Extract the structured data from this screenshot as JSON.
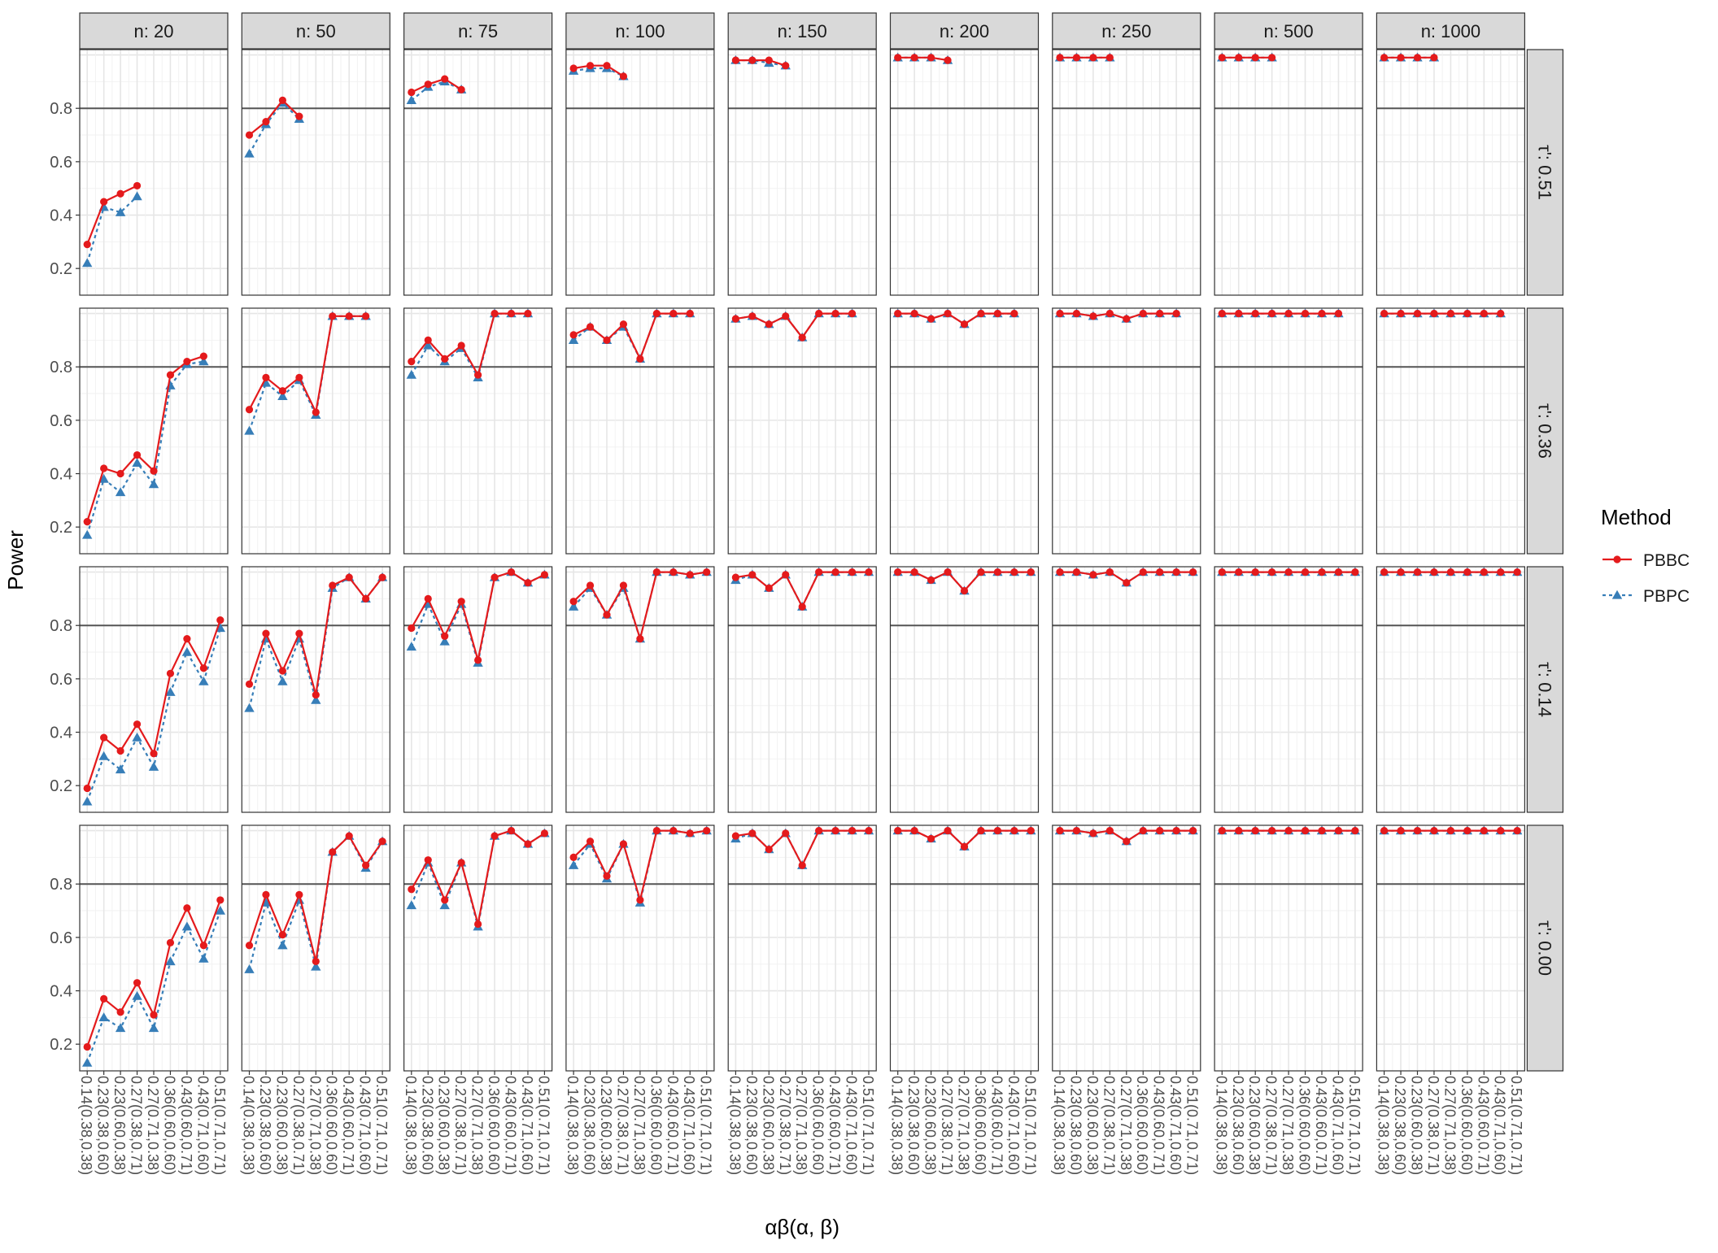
{
  "chart_data": {
    "type": "line",
    "facet_columns": [
      "n: 20",
      "n: 50",
      "n: 75",
      "n: 100",
      "n: 150",
      "n: 200",
      "n: 250",
      "n: 500",
      "n: 1000"
    ],
    "facet_rows": [
      "τ': 0.51",
      "τ': 0.36",
      "τ': 0.14",
      "τ': 0.00"
    ],
    "categories": [
      "0.14(0.38,0.38)",
      "0.23(0.38,0.60)",
      "0.23(0.60,0.38)",
      "0.27(0.38,0.71)",
      "0.27(0.71,0.38)",
      "0.36(0.60,0.60)",
      "0.43(0.60,0.71)",
      "0.43(0.71,0.60)",
      "0.51(0.71,0.71)"
    ],
    "xlabel": "αβ(α, β)",
    "ylabel": "Power",
    "ylim": [
      0.1,
      1.02
    ],
    "yticks": [
      0.2,
      0.4,
      0.6,
      0.8
    ],
    "yticklabels": [
      "0.2",
      "0.4",
      "0.6",
      "0.8"
    ],
    "reference_line": 0.8,
    "grid": true,
    "legend": {
      "title": "Method",
      "position": "right",
      "entries": [
        "PBBC",
        "PBPC"
      ]
    },
    "series_styles": [
      {
        "name": "PBBC",
        "color": "#e41a1c",
        "marker": "circle",
        "line": "solid"
      },
      {
        "name": "PBPC",
        "color": "#377eb8",
        "marker": "triangle",
        "line": "dashed"
      }
    ],
    "panels": [
      {
        "row": 0,
        "col": 0,
        "PBBC": [
          0.29,
          0.45,
          0.48,
          0.51
        ],
        "PBPC": [
          0.22,
          0.43,
          0.41,
          0.47
        ]
      },
      {
        "row": 0,
        "col": 1,
        "PBBC": [
          0.7,
          0.75,
          0.83,
          0.77
        ],
        "PBPC": [
          0.63,
          0.74,
          0.82,
          0.76
        ]
      },
      {
        "row": 0,
        "col": 2,
        "PBBC": [
          0.86,
          0.89,
          0.91,
          0.87
        ],
        "PBPC": [
          0.83,
          0.88,
          0.9,
          0.87
        ]
      },
      {
        "row": 0,
        "col": 3,
        "PBBC": [
          0.95,
          0.96,
          0.96,
          0.92
        ],
        "PBPC": [
          0.94,
          0.95,
          0.95,
          0.92
        ]
      },
      {
        "row": 0,
        "col": 4,
        "PBBC": [
          0.98,
          0.98,
          0.98,
          0.96
        ],
        "PBPC": [
          0.98,
          0.98,
          0.97,
          0.96
        ]
      },
      {
        "row": 0,
        "col": 5,
        "PBBC": [
          0.99,
          0.99,
          0.99,
          0.98
        ],
        "PBPC": [
          0.99,
          0.99,
          0.99,
          0.98
        ]
      },
      {
        "row": 0,
        "col": 6,
        "PBBC": [
          0.99,
          0.99,
          0.99,
          0.99
        ],
        "PBPC": [
          0.99,
          0.99,
          0.99,
          0.99
        ]
      },
      {
        "row": 0,
        "col": 7,
        "PBBC": [
          0.99,
          0.99,
          0.99,
          0.99
        ],
        "PBPC": [
          0.99,
          0.99,
          0.99,
          0.99
        ]
      },
      {
        "row": 0,
        "col": 8,
        "PBBC": [
          0.99,
          0.99,
          0.99,
          0.99
        ],
        "PBPC": [
          0.99,
          0.99,
          0.99,
          0.99
        ]
      },
      {
        "row": 1,
        "col": 0,
        "PBBC": [
          0.22,
          0.42,
          0.4,
          0.47,
          0.41,
          0.77,
          0.82,
          0.84
        ],
        "PBPC": [
          0.17,
          0.38,
          0.33,
          0.44,
          0.36,
          0.73,
          0.81,
          0.82
        ]
      },
      {
        "row": 1,
        "col": 1,
        "PBBC": [
          0.64,
          0.76,
          0.71,
          0.76,
          0.63,
          0.99,
          0.99,
          0.99
        ],
        "PBPC": [
          0.56,
          0.74,
          0.69,
          0.75,
          0.62,
          0.99,
          0.99,
          0.99
        ]
      },
      {
        "row": 1,
        "col": 2,
        "PBBC": [
          0.82,
          0.9,
          0.83,
          0.88,
          0.77,
          1.0,
          1.0,
          1.0
        ],
        "PBPC": [
          0.77,
          0.88,
          0.82,
          0.87,
          0.76,
          1.0,
          1.0,
          1.0
        ]
      },
      {
        "row": 1,
        "col": 3,
        "PBBC": [
          0.92,
          0.95,
          0.9,
          0.96,
          0.83,
          1.0,
          1.0,
          1.0
        ],
        "PBPC": [
          0.9,
          0.95,
          0.9,
          0.95,
          0.83,
          1.0,
          1.0,
          1.0
        ]
      },
      {
        "row": 1,
        "col": 4,
        "PBBC": [
          0.98,
          0.99,
          0.96,
          0.99,
          0.91,
          1.0,
          1.0,
          1.0
        ],
        "PBPC": [
          0.98,
          0.99,
          0.96,
          0.99,
          0.91,
          1.0,
          1.0,
          1.0
        ]
      },
      {
        "row": 1,
        "col": 5,
        "PBBC": [
          1.0,
          1.0,
          0.98,
          1.0,
          0.96,
          1.0,
          1.0,
          1.0
        ],
        "PBPC": [
          1.0,
          1.0,
          0.98,
          1.0,
          0.96,
          1.0,
          1.0,
          1.0
        ]
      },
      {
        "row": 1,
        "col": 6,
        "PBBC": [
          1.0,
          1.0,
          0.99,
          1.0,
          0.98,
          1.0,
          1.0,
          1.0
        ],
        "PBPC": [
          1.0,
          1.0,
          0.99,
          1.0,
          0.98,
          1.0,
          1.0,
          1.0
        ]
      },
      {
        "row": 1,
        "col": 7,
        "PBBC": [
          1.0,
          1.0,
          1.0,
          1.0,
          1.0,
          1.0,
          1.0,
          1.0
        ],
        "PBPC": [
          1.0,
          1.0,
          1.0,
          1.0,
          1.0,
          1.0,
          1.0,
          1.0
        ]
      },
      {
        "row": 1,
        "col": 8,
        "PBBC": [
          1.0,
          1.0,
          1.0,
          1.0,
          1.0,
          1.0,
          1.0,
          1.0
        ],
        "PBPC": [
          1.0,
          1.0,
          1.0,
          1.0,
          1.0,
          1.0,
          1.0,
          1.0
        ]
      },
      {
        "row": 2,
        "col": 0,
        "PBBC": [
          0.19,
          0.38,
          0.33,
          0.43,
          0.32,
          0.62,
          0.75,
          0.64,
          0.82
        ],
        "PBPC": [
          0.14,
          0.31,
          0.26,
          0.38,
          0.27,
          0.55,
          0.7,
          0.59,
          0.79
        ]
      },
      {
        "row": 2,
        "col": 1,
        "PBBC": [
          0.58,
          0.77,
          0.63,
          0.77,
          0.54,
          0.95,
          0.98,
          0.9,
          0.98
        ],
        "PBPC": [
          0.49,
          0.75,
          0.59,
          0.75,
          0.52,
          0.94,
          0.98,
          0.9,
          0.98
        ]
      },
      {
        "row": 2,
        "col": 2,
        "PBBC": [
          0.79,
          0.9,
          0.76,
          0.89,
          0.67,
          0.98,
          1.0,
          0.96,
          0.99
        ],
        "PBPC": [
          0.72,
          0.88,
          0.74,
          0.88,
          0.66,
          0.98,
          1.0,
          0.96,
          0.99
        ]
      },
      {
        "row": 2,
        "col": 3,
        "PBBC": [
          0.89,
          0.95,
          0.84,
          0.95,
          0.75,
          1.0,
          1.0,
          0.99,
          1.0
        ],
        "PBPC": [
          0.87,
          0.94,
          0.84,
          0.94,
          0.75,
          1.0,
          1.0,
          0.99,
          1.0
        ]
      },
      {
        "row": 2,
        "col": 4,
        "PBBC": [
          0.98,
          0.99,
          0.94,
          0.99,
          0.87,
          1.0,
          1.0,
          1.0,
          1.0
        ],
        "PBPC": [
          0.97,
          0.99,
          0.94,
          0.99,
          0.87,
          1.0,
          1.0,
          1.0,
          1.0
        ]
      },
      {
        "row": 2,
        "col": 5,
        "PBBC": [
          1.0,
          1.0,
          0.97,
          1.0,
          0.93,
          1.0,
          1.0,
          1.0,
          1.0
        ],
        "PBPC": [
          1.0,
          1.0,
          0.97,
          1.0,
          0.93,
          1.0,
          1.0,
          1.0,
          1.0
        ]
      },
      {
        "row": 2,
        "col": 6,
        "PBBC": [
          1.0,
          1.0,
          0.99,
          1.0,
          0.96,
          1.0,
          1.0,
          1.0,
          1.0
        ],
        "PBPC": [
          1.0,
          1.0,
          0.99,
          1.0,
          0.96,
          1.0,
          1.0,
          1.0,
          1.0
        ]
      },
      {
        "row": 2,
        "col": 7,
        "PBBC": [
          1.0,
          1.0,
          1.0,
          1.0,
          1.0,
          1.0,
          1.0,
          1.0,
          1.0
        ],
        "PBPC": [
          1.0,
          1.0,
          1.0,
          1.0,
          1.0,
          1.0,
          1.0,
          1.0,
          1.0
        ]
      },
      {
        "row": 2,
        "col": 8,
        "PBBC": [
          1.0,
          1.0,
          1.0,
          1.0,
          1.0,
          1.0,
          1.0,
          1.0,
          1.0
        ],
        "PBPC": [
          1.0,
          1.0,
          1.0,
          1.0,
          1.0,
          1.0,
          1.0,
          1.0,
          1.0
        ]
      },
      {
        "row": 3,
        "col": 0,
        "PBBC": [
          0.19,
          0.37,
          0.32,
          0.43,
          0.31,
          0.58,
          0.71,
          0.57,
          0.74
        ],
        "PBPC": [
          0.13,
          0.3,
          0.26,
          0.38,
          0.26,
          0.51,
          0.64,
          0.52,
          0.7
        ]
      },
      {
        "row": 3,
        "col": 1,
        "PBBC": [
          0.57,
          0.76,
          0.61,
          0.76,
          0.51,
          0.92,
          0.98,
          0.87,
          0.96
        ],
        "PBPC": [
          0.48,
          0.73,
          0.57,
          0.74,
          0.49,
          0.92,
          0.98,
          0.86,
          0.96
        ]
      },
      {
        "row": 3,
        "col": 2,
        "PBBC": [
          0.78,
          0.89,
          0.74,
          0.88,
          0.65,
          0.98,
          1.0,
          0.95,
          0.99
        ],
        "PBPC": [
          0.72,
          0.88,
          0.72,
          0.88,
          0.64,
          0.98,
          1.0,
          0.95,
          0.99
        ]
      },
      {
        "row": 3,
        "col": 3,
        "PBBC": [
          0.9,
          0.96,
          0.83,
          0.95,
          0.74,
          1.0,
          1.0,
          0.99,
          1.0
        ],
        "PBPC": [
          0.87,
          0.95,
          0.82,
          0.95,
          0.73,
          1.0,
          1.0,
          0.99,
          1.0
        ]
      },
      {
        "row": 3,
        "col": 4,
        "PBBC": [
          0.98,
          0.99,
          0.93,
          0.99,
          0.87,
          1.0,
          1.0,
          1.0,
          1.0
        ],
        "PBPC": [
          0.97,
          0.99,
          0.93,
          0.99,
          0.87,
          1.0,
          1.0,
          1.0,
          1.0
        ]
      },
      {
        "row": 3,
        "col": 5,
        "PBBC": [
          1.0,
          1.0,
          0.97,
          1.0,
          0.94,
          1.0,
          1.0,
          1.0,
          1.0
        ],
        "PBPC": [
          1.0,
          1.0,
          0.97,
          1.0,
          0.94,
          1.0,
          1.0,
          1.0,
          1.0
        ]
      },
      {
        "row": 3,
        "col": 6,
        "PBBC": [
          1.0,
          1.0,
          0.99,
          1.0,
          0.96,
          1.0,
          1.0,
          1.0,
          1.0
        ],
        "PBPC": [
          1.0,
          1.0,
          0.99,
          1.0,
          0.96,
          1.0,
          1.0,
          1.0,
          1.0
        ]
      },
      {
        "row": 3,
        "col": 7,
        "PBBC": [
          1.0,
          1.0,
          1.0,
          1.0,
          1.0,
          1.0,
          1.0,
          1.0,
          1.0
        ],
        "PBPC": [
          1.0,
          1.0,
          1.0,
          1.0,
          1.0,
          1.0,
          1.0,
          1.0,
          1.0
        ]
      },
      {
        "row": 3,
        "col": 8,
        "PBBC": [
          1.0,
          1.0,
          1.0,
          1.0,
          1.0,
          1.0,
          1.0,
          1.0,
          1.0
        ],
        "PBPC": [
          1.0,
          1.0,
          1.0,
          1.0,
          1.0,
          1.0,
          1.0,
          1.0,
          1.0
        ]
      }
    ]
  }
}
